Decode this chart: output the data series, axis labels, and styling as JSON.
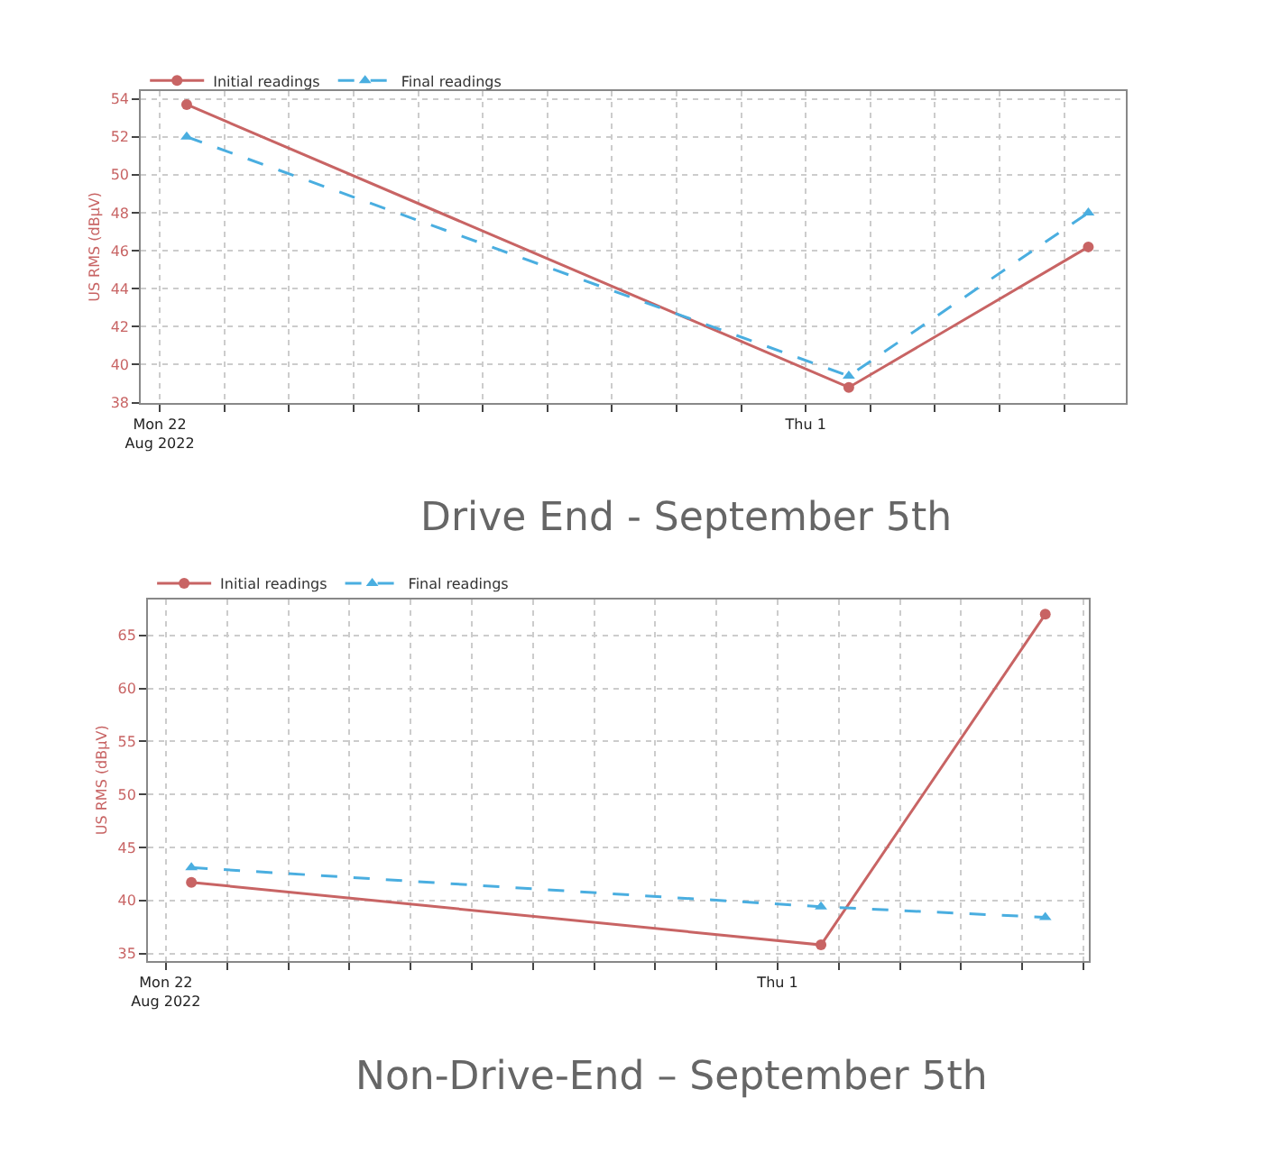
{
  "chart_data": [
    {
      "type": "line",
      "title": "Drive End - September 5th",
      "ylabel": "US RMS (dBµV)",
      "x": [
        "2022-08-22T10:00",
        "2022-09-01T16:00",
        "2022-09-05T09:00"
      ],
      "series": [
        {
          "name": "Initial readings",
          "color": "#c86464",
          "values": [
            53.7,
            38.8,
            46.2
          ],
          "marker": "circle",
          "line_style": "solid"
        },
        {
          "name": "Final readings",
          "color": "#4aaee0",
          "values": [
            52.0,
            39.4,
            48.0
          ],
          "marker": "triangle",
          "line_style": "dashed"
        }
      ],
      "xlim": [
        "2022-08-21T17:00",
        "2022-09-05T23:00"
      ],
      "xticks": [
        {
          "value": "2022-08-22",
          "label": "Mon 22\nAug 2022"
        },
        {
          "value": "2022-08-23",
          "label": null
        },
        {
          "value": "2022-08-24",
          "label": null
        },
        {
          "value": "2022-08-25",
          "label": null
        },
        {
          "value": "2022-08-26",
          "label": null
        },
        {
          "value": "2022-08-27",
          "label": null
        },
        {
          "value": "2022-08-28",
          "label": null
        },
        {
          "value": "2022-08-29",
          "label": null
        },
        {
          "value": "2022-08-30",
          "label": null
        },
        {
          "value": "2022-08-31",
          "label": null
        },
        {
          "value": "2022-09-01",
          "label": "Thu 1"
        },
        {
          "value": "2022-09-02",
          "label": null
        },
        {
          "value": "2022-09-03",
          "label": null
        },
        {
          "value": "2022-09-04",
          "label": null
        },
        {
          "value": "2022-09-05",
          "label": null
        }
      ],
      "ylim": [
        38,
        54.4
      ],
      "yticks": [
        38,
        40,
        42,
        44,
        46,
        48,
        50,
        52,
        54
      ],
      "grid": true,
      "legend": "top left"
    },
    {
      "type": "line",
      "title": "Non-Drive-End – September 5th",
      "ylabel": "US RMS (dBµV)",
      "x": [
        "2022-08-22T10:00",
        "2022-09-01T17:00",
        "2022-09-05T09:00"
      ],
      "series": [
        {
          "name": "Initial readings",
          "color": "#c86464",
          "values": [
            41.7,
            35.8,
            67.0
          ],
          "marker": "circle",
          "line_style": "solid"
        },
        {
          "name": "Final readings",
          "color": "#4aaee0",
          "values": [
            43.1,
            39.4,
            38.4
          ],
          "marker": "triangle",
          "line_style": "dashed"
        }
      ],
      "xlim": [
        "2022-08-21T17:00",
        "2022-09-06T02:00"
      ],
      "xticks": [
        {
          "value": "2022-08-22",
          "label": "Mon 22\nAug 2022"
        },
        {
          "value": "2022-08-23",
          "label": null
        },
        {
          "value": "2022-08-24",
          "label": null
        },
        {
          "value": "2022-08-25",
          "label": null
        },
        {
          "value": "2022-08-26",
          "label": null
        },
        {
          "value": "2022-08-27",
          "label": null
        },
        {
          "value": "2022-08-28",
          "label": null
        },
        {
          "value": "2022-08-29",
          "label": null
        },
        {
          "value": "2022-08-30",
          "label": null
        },
        {
          "value": "2022-08-31",
          "label": null
        },
        {
          "value": "2022-09-01",
          "label": "Thu 1"
        },
        {
          "value": "2022-09-02",
          "label": null
        },
        {
          "value": "2022-09-03",
          "label": null
        },
        {
          "value": "2022-09-04",
          "label": null
        },
        {
          "value": "2022-09-05",
          "label": null
        },
        {
          "value": "2022-09-06",
          "label": null
        }
      ],
      "ylim": [
        34.3,
        68.4
      ],
      "yticks": [
        35,
        40,
        45,
        50,
        55,
        60,
        65
      ],
      "grid": true,
      "legend": "top left"
    }
  ]
}
